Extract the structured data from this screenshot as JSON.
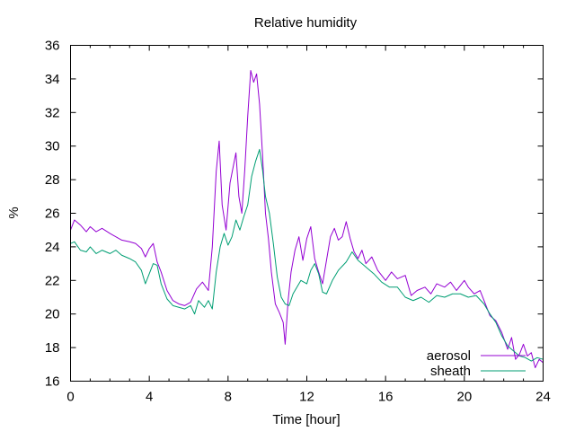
{
  "chart_data": {
    "type": "line",
    "title": "Relative humidity",
    "xlabel": "Time [hour]",
    "ylabel": "%",
    "xlim": [
      0,
      24
    ],
    "ylim": [
      16,
      36
    ],
    "x_ticks": [
      0,
      4,
      8,
      12,
      16,
      20,
      24
    ],
    "y_ticks": [
      16,
      18,
      20,
      22,
      24,
      26,
      28,
      30,
      32,
      34,
      36
    ],
    "grid": false,
    "legend_position": "bottom-right",
    "series": [
      {
        "name": "aerosol",
        "color": "#9400d3",
        "points": [
          [
            0.0,
            25.0
          ],
          [
            0.2,
            25.6
          ],
          [
            0.5,
            25.3
          ],
          [
            0.8,
            24.9
          ],
          [
            1.0,
            25.2
          ],
          [
            1.3,
            24.9
          ],
          [
            1.6,
            25.1
          ],
          [
            2.0,
            24.8
          ],
          [
            2.3,
            24.6
          ],
          [
            2.6,
            24.4
          ],
          [
            3.0,
            24.3
          ],
          [
            3.3,
            24.2
          ],
          [
            3.6,
            23.9
          ],
          [
            3.8,
            23.4
          ],
          [
            4.0,
            23.9
          ],
          [
            4.2,
            24.2
          ],
          [
            4.4,
            23.1
          ],
          [
            4.6,
            22.5
          ],
          [
            4.9,
            21.4
          ],
          [
            5.2,
            20.8
          ],
          [
            5.5,
            20.6
          ],
          [
            5.8,
            20.5
          ],
          [
            6.1,
            20.7
          ],
          [
            6.4,
            21.5
          ],
          [
            6.7,
            21.9
          ],
          [
            7.0,
            21.4
          ],
          [
            7.2,
            24.0
          ],
          [
            7.4,
            28.5
          ],
          [
            7.55,
            30.3
          ],
          [
            7.7,
            26.5
          ],
          [
            7.9,
            25.0
          ],
          [
            8.1,
            27.8
          ],
          [
            8.3,
            29.0
          ],
          [
            8.4,
            29.6
          ],
          [
            8.55,
            27.0
          ],
          [
            8.7,
            26.0
          ],
          [
            8.85,
            28.6
          ],
          [
            9.0,
            31.8
          ],
          [
            9.15,
            34.5
          ],
          [
            9.3,
            33.8
          ],
          [
            9.45,
            34.3
          ],
          [
            9.6,
            32.5
          ],
          [
            9.75,
            29.5
          ],
          [
            9.9,
            26.0
          ],
          [
            10.05,
            24.5
          ],
          [
            10.2,
            22.5
          ],
          [
            10.4,
            20.6
          ],
          [
            10.6,
            20.1
          ],
          [
            10.8,
            19.5
          ],
          [
            10.9,
            18.2
          ],
          [
            11.05,
            20.8
          ],
          [
            11.2,
            22.5
          ],
          [
            11.4,
            23.8
          ],
          [
            11.6,
            24.6
          ],
          [
            11.8,
            23.2
          ],
          [
            12.0,
            24.5
          ],
          [
            12.2,
            25.2
          ],
          [
            12.4,
            23.3
          ],
          [
            12.6,
            22.5
          ],
          [
            12.8,
            21.8
          ],
          [
            13.0,
            23.2
          ],
          [
            13.2,
            24.6
          ],
          [
            13.4,
            25.1
          ],
          [
            13.6,
            24.4
          ],
          [
            13.8,
            24.6
          ],
          [
            14.0,
            25.5
          ],
          [
            14.2,
            24.5
          ],
          [
            14.4,
            23.7
          ],
          [
            14.6,
            23.3
          ],
          [
            14.8,
            23.8
          ],
          [
            15.0,
            23.0
          ],
          [
            15.3,
            23.4
          ],
          [
            15.6,
            22.6
          ],
          [
            16.0,
            22.0
          ],
          [
            16.3,
            22.5
          ],
          [
            16.6,
            22.1
          ],
          [
            17.0,
            22.3
          ],
          [
            17.3,
            21.1
          ],
          [
            17.6,
            21.4
          ],
          [
            18.0,
            21.6
          ],
          [
            18.3,
            21.2
          ],
          [
            18.6,
            21.8
          ],
          [
            19.0,
            21.6
          ],
          [
            19.3,
            21.9
          ],
          [
            19.6,
            21.4
          ],
          [
            20.0,
            22.0
          ],
          [
            20.2,
            21.6
          ],
          [
            20.5,
            21.2
          ],
          [
            20.8,
            21.4
          ],
          [
            21.0,
            20.8
          ],
          [
            21.3,
            19.9
          ],
          [
            21.6,
            19.6
          ],
          [
            21.9,
            18.9
          ],
          [
            22.2,
            17.9
          ],
          [
            22.4,
            18.6
          ],
          [
            22.6,
            17.3
          ],
          [
            22.8,
            17.6
          ],
          [
            23.0,
            18.2
          ],
          [
            23.2,
            17.5
          ],
          [
            23.4,
            17.7
          ],
          [
            23.6,
            16.8
          ],
          [
            23.8,
            17.3
          ],
          [
            24.0,
            17.1
          ]
        ]
      },
      {
        "name": "sheath",
        "color": "#009e73",
        "points": [
          [
            0.0,
            24.2
          ],
          [
            0.2,
            24.3
          ],
          [
            0.5,
            23.8
          ],
          [
            0.8,
            23.7
          ],
          [
            1.0,
            24.0
          ],
          [
            1.3,
            23.6
          ],
          [
            1.6,
            23.8
          ],
          [
            2.0,
            23.6
          ],
          [
            2.3,
            23.8
          ],
          [
            2.6,
            23.5
          ],
          [
            3.0,
            23.3
          ],
          [
            3.3,
            23.1
          ],
          [
            3.6,
            22.6
          ],
          [
            3.8,
            21.8
          ],
          [
            4.0,
            22.4
          ],
          [
            4.2,
            23.0
          ],
          [
            4.4,
            22.9
          ],
          [
            4.6,
            21.8
          ],
          [
            4.9,
            20.9
          ],
          [
            5.2,
            20.5
          ],
          [
            5.5,
            20.4
          ],
          [
            5.8,
            20.3
          ],
          [
            6.1,
            20.5
          ],
          [
            6.3,
            20.0
          ],
          [
            6.5,
            20.8
          ],
          [
            6.8,
            20.4
          ],
          [
            7.0,
            20.8
          ],
          [
            7.2,
            20.3
          ],
          [
            7.4,
            22.5
          ],
          [
            7.6,
            24.0
          ],
          [
            7.8,
            24.8
          ],
          [
            8.0,
            24.1
          ],
          [
            8.2,
            24.6
          ],
          [
            8.4,
            25.6
          ],
          [
            8.6,
            25.0
          ],
          [
            8.8,
            25.8
          ],
          [
            9.0,
            26.5
          ],
          [
            9.2,
            28.2
          ],
          [
            9.4,
            29.1
          ],
          [
            9.6,
            29.8
          ],
          [
            9.75,
            28.6
          ],
          [
            9.9,
            27.0
          ],
          [
            10.1,
            26.0
          ],
          [
            10.3,
            24.2
          ],
          [
            10.5,
            22.2
          ],
          [
            10.7,
            21.0
          ],
          [
            10.9,
            20.6
          ],
          [
            11.1,
            20.5
          ],
          [
            11.3,
            21.2
          ],
          [
            11.5,
            21.6
          ],
          [
            11.7,
            22.0
          ],
          [
            12.0,
            21.8
          ],
          [
            12.2,
            22.6
          ],
          [
            12.4,
            23.0
          ],
          [
            12.6,
            22.4
          ],
          [
            12.8,
            21.3
          ],
          [
            13.0,
            21.2
          ],
          [
            13.3,
            22.0
          ],
          [
            13.6,
            22.6
          ],
          [
            14.0,
            23.1
          ],
          [
            14.3,
            23.7
          ],
          [
            14.6,
            23.2
          ],
          [
            15.0,
            22.8
          ],
          [
            15.4,
            22.4
          ],
          [
            15.8,
            21.9
          ],
          [
            16.2,
            21.6
          ],
          [
            16.6,
            21.6
          ],
          [
            17.0,
            21.0
          ],
          [
            17.4,
            20.8
          ],
          [
            17.8,
            21.0
          ],
          [
            18.2,
            20.7
          ],
          [
            18.6,
            21.1
          ],
          [
            19.0,
            21.0
          ],
          [
            19.4,
            21.2
          ],
          [
            19.8,
            21.2
          ],
          [
            20.2,
            21.0
          ],
          [
            20.6,
            21.1
          ],
          [
            21.0,
            20.6
          ],
          [
            21.3,
            20.0
          ],
          [
            21.6,
            19.5
          ],
          [
            21.9,
            18.7
          ],
          [
            22.2,
            18.1
          ],
          [
            22.5,
            17.8
          ],
          [
            22.8,
            17.5
          ],
          [
            23.1,
            17.4
          ],
          [
            23.4,
            17.2
          ],
          [
            23.7,
            17.4
          ],
          [
            24.0,
            17.3
          ]
        ]
      }
    ]
  }
}
